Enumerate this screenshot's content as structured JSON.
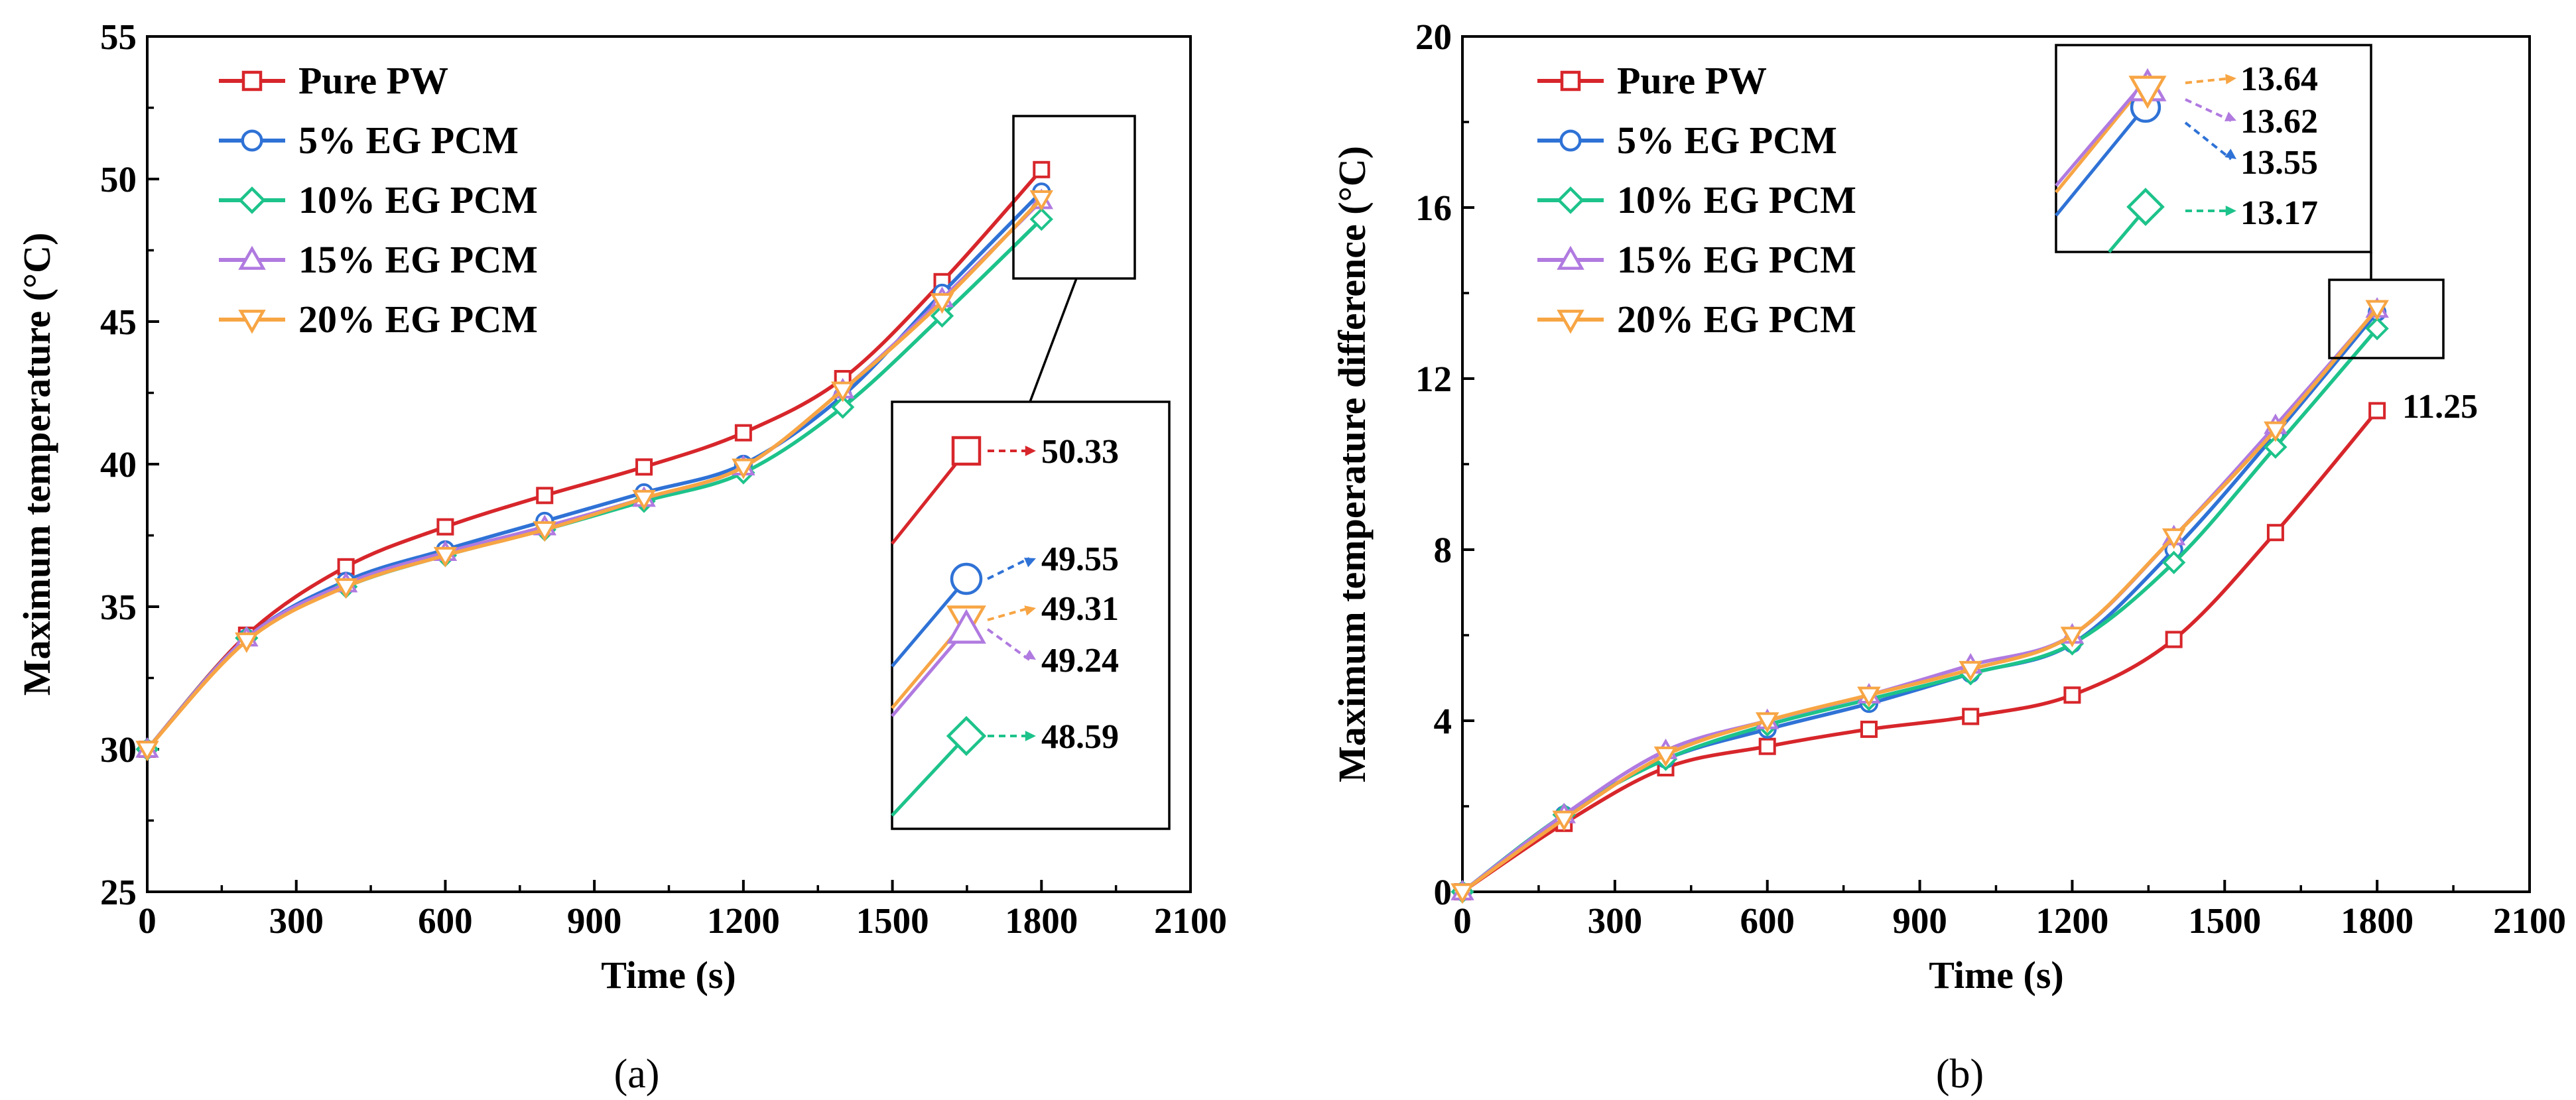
{
  "chart_data": [
    {
      "type": "line",
      "panel_label": "(a)",
      "xlabel": "Time (s)",
      "ylabel": "Maximum temperature (°C)",
      "xlim": [
        0,
        2100
      ],
      "ylim": [
        25,
        55
      ],
      "xticks": [
        0,
        300,
        600,
        900,
        1200,
        1500,
        1800,
        2100
      ],
      "yticks": [
        25,
        30,
        35,
        40,
        45,
        50,
        55
      ],
      "x": [
        0,
        200,
        400,
        600,
        800,
        1000,
        1200,
        1400,
        1600,
        1800
      ],
      "series": [
        {
          "name": "Pure PW",
          "marker": "square",
          "color": "#d7262b",
          "values": [
            30.0,
            34.0,
            36.4,
            37.8,
            38.9,
            39.9,
            41.1,
            43.0,
            46.4,
            50.33
          ]
        },
        {
          "name": "5% EG PCM",
          "marker": "circle",
          "color": "#2f72d6",
          "values": [
            30.0,
            33.9,
            35.9,
            37.0,
            38.0,
            39.0,
            40.0,
            42.4,
            46.0,
            49.55
          ]
        },
        {
          "name": "10% EG PCM",
          "marker": "diamond",
          "color": "#1dc38a",
          "values": [
            30.0,
            33.9,
            35.7,
            36.8,
            37.7,
            38.7,
            39.7,
            42.0,
            45.2,
            48.59
          ]
        },
        {
          "name": "15% EG PCM",
          "marker": "triangle-up",
          "color": "#b07ae0",
          "values": [
            30.0,
            33.9,
            35.8,
            36.9,
            37.8,
            38.8,
            39.9,
            42.6,
            45.8,
            49.24
          ]
        },
        {
          "name": "20% EG PCM",
          "marker": "triangle-down",
          "color": "#f7a544",
          "values": [
            30.0,
            33.8,
            35.7,
            36.8,
            37.7,
            38.8,
            39.9,
            42.6,
            45.7,
            49.31
          ]
        }
      ],
      "inset_labels": [
        "50.33",
        "49.55",
        "49.31",
        "49.24",
        "48.59"
      ]
    },
    {
      "type": "line",
      "panel_label": "(b)",
      "xlabel": "Time (s)",
      "ylabel": "Maximum temperature difference (°C)",
      "xlim": [
        0,
        2100
      ],
      "ylim": [
        0,
        20
      ],
      "xticks": [
        0,
        300,
        600,
        900,
        1200,
        1500,
        1800,
        2100
      ],
      "yticks": [
        0,
        4,
        8,
        12,
        16,
        20
      ],
      "x": [
        0,
        200,
        400,
        600,
        800,
        1000,
        1200,
        1400,
        1600,
        1800
      ],
      "series": [
        {
          "name": "Pure PW",
          "marker": "square",
          "color": "#d7262b",
          "values": [
            0.0,
            1.6,
            2.9,
            3.4,
            3.8,
            4.1,
            4.6,
            5.9,
            8.4,
            11.25
          ]
        },
        {
          "name": "5% EG PCM",
          "marker": "circle",
          "color": "#2f72d6",
          "values": [
            0.0,
            1.8,
            3.1,
            3.8,
            4.4,
            5.1,
            5.8,
            8.0,
            10.7,
            13.55
          ]
        },
        {
          "name": "10% EG PCM",
          "marker": "diamond",
          "color": "#1dc38a",
          "values": [
            0.0,
            1.8,
            3.1,
            3.9,
            4.5,
            5.1,
            5.8,
            7.7,
            10.4,
            13.17
          ]
        },
        {
          "name": "15% EG PCM",
          "marker": "triangle-up",
          "color": "#b07ae0",
          "values": [
            0.0,
            1.8,
            3.3,
            4.0,
            4.6,
            5.3,
            6.0,
            8.3,
            10.9,
            13.62
          ]
        },
        {
          "name": "20% EG PCM",
          "marker": "triangle-down",
          "color": "#f7a544",
          "values": [
            0.0,
            1.7,
            3.2,
            4.0,
            4.6,
            5.2,
            6.0,
            8.3,
            10.8,
            13.64
          ]
        }
      ],
      "end_label": "11.25",
      "inset_labels": [
        "13.64",
        "13.62",
        "13.55",
        "13.17"
      ]
    }
  ]
}
